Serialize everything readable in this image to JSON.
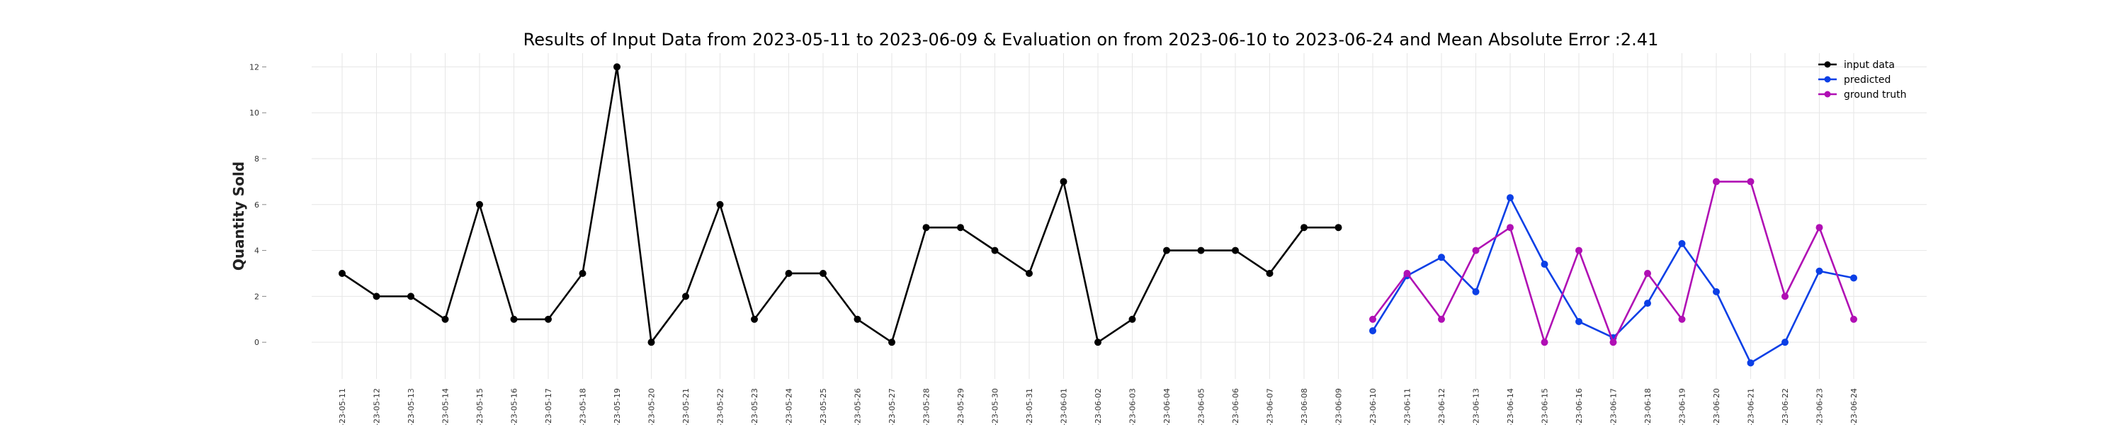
{
  "chart_data": {
    "type": "line",
    "title": "Results of Input Data from 2023-05-11 to 2023-06-09 & Evaluation on from 2023-06-10 to 2023-06-24 and Mean Absolute Error  :2.41",
    "xlabel": "",
    "ylabel": "Quantity Sold",
    "ylim": [
      -1.6,
      12.6
    ],
    "yticks": [
      0,
      2,
      4,
      6,
      8,
      10,
      12
    ],
    "grid": true,
    "legend_position": "top-right",
    "x": [
      "2023-05-11",
      "2023-05-12",
      "2023-05-13",
      "2023-05-14",
      "2023-05-15",
      "2023-05-16",
      "2023-05-17",
      "2023-05-18",
      "2023-05-19",
      "2023-05-20",
      "2023-05-21",
      "2023-05-22",
      "2023-05-23",
      "2023-05-24",
      "2023-05-25",
      "2023-05-26",
      "2023-05-27",
      "2023-05-28",
      "2023-05-29",
      "2023-05-30",
      "2023-05-31",
      "2023-06-01",
      "2023-06-02",
      "2023-06-03",
      "2023-06-04",
      "2023-06-05",
      "2023-06-06",
      "2023-06-07",
      "2023-06-08",
      "2023-06-09",
      "2023-06-10",
      "2023-06-11",
      "2023-06-12",
      "2023-06-13",
      "2023-06-14",
      "2023-06-15",
      "2023-06-16",
      "2023-06-17",
      "2023-06-18",
      "2023-06-19",
      "2023-06-20",
      "2023-06-21",
      "2023-06-22",
      "2023-06-23",
      "2023-06-24"
    ],
    "xtick_labels": [
      "-23-05-11",
      "-23-05-12",
      "-23-05-13",
      "-23-05-14",
      "-23-05-15",
      "-23-05-16",
      "-23-05-17",
      "-23-05-18",
      "-23-05-19",
      "-23-05-20",
      "-23-05-21",
      "-23-05-22",
      "-23-05-23",
      "-23-05-24",
      "-23-05-25",
      "-23-05-26",
      "-23-05-27",
      "-23-05-28",
      "-23-05-29",
      "-23-05-30",
      "-23-05-31",
      "-23-06-01",
      "-23-06-02",
      "-23-06-03",
      "-23-06-04",
      "-23-06-05",
      "-23-06-06",
      "-23-06-07",
      "-23-06-08",
      "-23-06-09",
      "-23-06-10",
      "-23-06-11",
      "-23-06-12",
      "-23-06-13",
      "-23-06-14",
      "-23-06-15",
      "-23-06-16",
      "-23-06-17",
      "-23-06-18",
      "-23-06-19",
      "-23-06-20",
      "-23-06-21",
      "-23-06-22",
      "-23-06-23",
      "-23-06-24"
    ],
    "series": [
      {
        "name": "input data",
        "color": "#000000",
        "x": [
          "2023-05-11",
          "2023-05-12",
          "2023-05-13",
          "2023-05-14",
          "2023-05-15",
          "2023-05-16",
          "2023-05-17",
          "2023-05-18",
          "2023-05-19",
          "2023-05-20",
          "2023-05-21",
          "2023-05-22",
          "2023-05-23",
          "2023-05-24",
          "2023-05-25",
          "2023-05-26",
          "2023-05-27",
          "2023-05-28",
          "2023-05-29",
          "2023-05-30",
          "2023-05-31",
          "2023-06-01",
          "2023-06-02",
          "2023-06-03",
          "2023-06-04",
          "2023-06-05",
          "2023-06-06",
          "2023-06-07",
          "2023-06-08",
          "2023-06-09"
        ],
        "values": [
          3,
          2,
          2,
          1,
          6,
          1,
          1,
          3,
          12,
          0,
          2,
          6,
          1,
          3,
          3,
          1,
          0,
          5,
          5,
          4,
          3,
          7,
          0,
          1,
          4,
          4,
          4,
          3,
          5,
          5
        ]
      },
      {
        "name": "predicted",
        "color": "#0b3fe6",
        "x": [
          "2023-06-10",
          "2023-06-11",
          "2023-06-12",
          "2023-06-13",
          "2023-06-14",
          "2023-06-15",
          "2023-06-16",
          "2023-06-17",
          "2023-06-18",
          "2023-06-19",
          "2023-06-20",
          "2023-06-21",
          "2023-06-22",
          "2023-06-23",
          "2023-06-24"
        ],
        "values": [
          0.5,
          2.9,
          3.7,
          2.2,
          6.3,
          3.4,
          0.9,
          0.2,
          1.7,
          4.3,
          2.2,
          -0.9,
          0.0,
          3.1,
          2.8
        ]
      },
      {
        "name": "ground truth",
        "color": "#b00fb4",
        "x": [
          "2023-06-10",
          "2023-06-11",
          "2023-06-12",
          "2023-06-13",
          "2023-06-14",
          "2023-06-15",
          "2023-06-16",
          "2023-06-17",
          "2023-06-18",
          "2023-06-19",
          "2023-06-20",
          "2023-06-21",
          "2023-06-22",
          "2023-06-23",
          "2023-06-24"
        ],
        "values": [
          1,
          3,
          1,
          4,
          5,
          0,
          4,
          0,
          3,
          1,
          7,
          7,
          2,
          5,
          1
        ]
      }
    ]
  }
}
